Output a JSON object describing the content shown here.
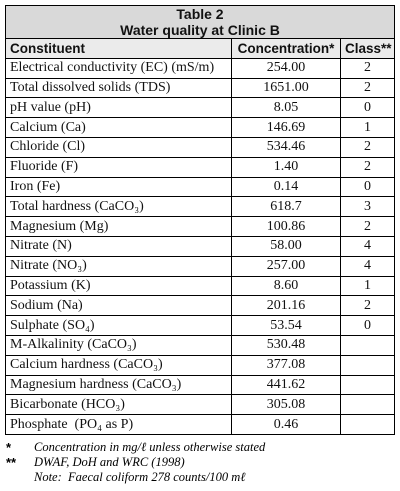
{
  "table": {
    "title": "Table 2",
    "subtitle": "Water quality at Clinic B",
    "header": [
      "Constituent",
      "Concentration*",
      "Class**"
    ],
    "rows": [
      [
        "Electrical conductivity (EC) (mS/m)",
        "254.00",
        "2"
      ],
      [
        "Total dissolved solids (TDS)",
        "1651.00",
        "2"
      ],
      [
        "pH value (pH)",
        "8.05",
        "0"
      ],
      [
        "Calcium (Ca)",
        "146.69",
        "1"
      ],
      [
        "Chloride (Cl)",
        "534.46",
        "2"
      ],
      [
        "Fluoride (F)",
        "1.40",
        "2"
      ],
      [
        "Iron (Fe)",
        "0.14",
        "0"
      ],
      [
        "Total hardness (CaCO₃)",
        "618.7",
        "3"
      ],
      [
        "Magnesium (Mg)",
        "100.86",
        "2"
      ],
      [
        "Nitrate (N)",
        "58.00",
        "4"
      ],
      [
        "Nitrate (NO₃)",
        "257.00",
        "4"
      ],
      [
        "Potassium (K)",
        "8.60",
        "1"
      ],
      [
        "Sodium (Na)",
        "201.16",
        "2"
      ],
      [
        "Sulphate (SO₄)",
        "53.54",
        "0"
      ],
      [
        "M-Alkalinity (CaCO₃)",
        "530.48",
        null
      ],
      [
        "Calcium hardness (CaCO₃)",
        "377.08",
        null
      ],
      [
        "Magnesium hardness (CaCO₃)",
        "441.62",
        null
      ],
      [
        "Bicarbonate (HCO₃)",
        "305.08",
        null
      ],
      [
        "Phosphate  (PO₄ as P)",
        "0.46",
        null
      ]
    ]
  },
  "footnotes": [
    {
      "marker": "*",
      "text": "Concentration in mg/ℓ unless otherwise stated"
    },
    {
      "marker": "**",
      "text": "DWAF, DoH and WRC (1998)"
    },
    {
      "marker": null,
      "text": "Note:  Faecal coliform 278 counts/100 mℓ"
    }
  ]
}
